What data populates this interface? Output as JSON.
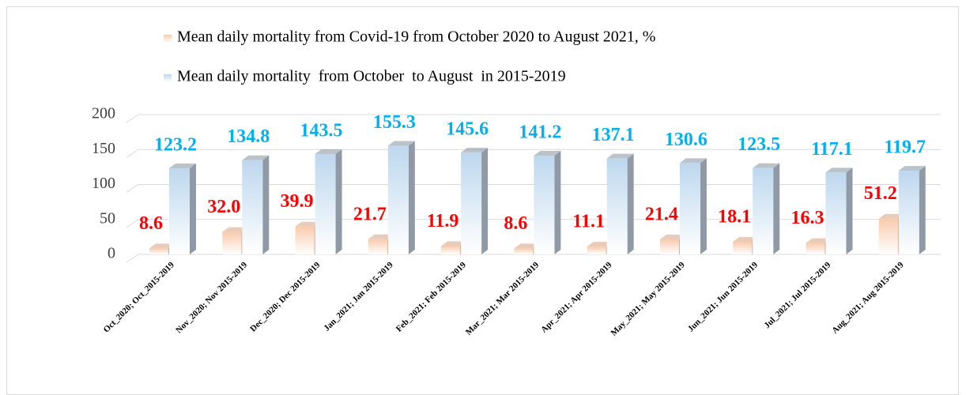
{
  "chart_data": {
    "type": "bar3d",
    "categories": [
      "Oct_2020; Oct_2015-2019",
      "Nov_2020; Nov 2015-2019",
      "Dec_2020; Dec 2015-2019",
      "Jan_2021; Jan 2015-2019",
      "Feb_2021; Feb 2015-2019",
      "Mar_2021; Mar 2015-2019",
      "Apr_2021; Apr 2015-2019",
      "May_2021; May 2015-2019",
      "Jun_2021; Jun 2015-2019",
      "Jul_2021; Jul 2015-2019",
      "Aug_2021; Aug 2015-2019"
    ],
    "series": [
      {
        "name": "Mean daily mortality from Covid-19 from October 2020 to August 2021, %",
        "color": "#f8cbad",
        "label_color": "#ff0000",
        "values": [
          8.6,
          32,
          39.9,
          21.7,
          11.9,
          8.6,
          11.1,
          21.4,
          18.1,
          16.3,
          51.2
        ],
        "value_labels": [
          "8.6",
          "32.0",
          "39.9",
          "21.7",
          "11.9",
          "8.6",
          "11.1",
          "21.4",
          "18.1",
          "16.3",
          "51.2"
        ]
      },
      {
        "name": "Mean daily mortality  from October  to August  in 2015-2019",
        "color": "#bdd7ee",
        "label_color": "#00b0f0",
        "values": [
          123.2,
          134.8,
          143.5,
          155.3,
          145.6,
          141.2,
          137.1,
          130.6,
          123.5,
          117.1,
          119.7
        ],
        "value_labels": [
          "123.2",
          "134.8",
          "143.5",
          "155.3",
          "145.6",
          "141.2",
          "137.1",
          "130.6",
          "123.5",
          "117.1",
          "119.7"
        ]
      }
    ],
    "ylim": [
      0,
      200
    ],
    "yticks": [
      0,
      50,
      100,
      150,
      200
    ],
    "grid": true
  }
}
